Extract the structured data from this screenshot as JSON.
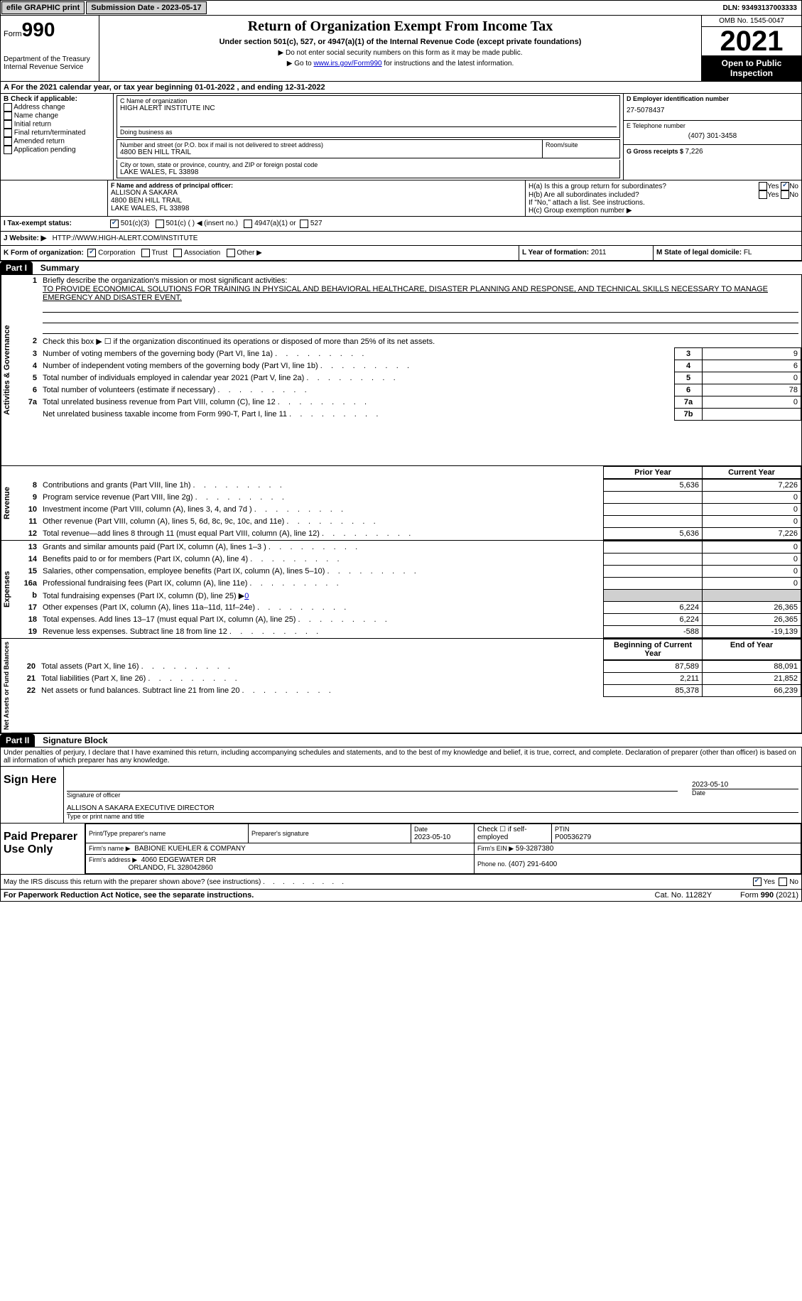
{
  "topbar": {
    "efile_label": "efile GRAPHIC print",
    "submission_label": "Submission Date - 2023-05-17",
    "dln_label": "DLN: 93493137003333"
  },
  "header": {
    "form_label": "Form",
    "form_number": "990",
    "dept": "Department of the Treasury Internal Revenue Service",
    "title": "Return of Organization Exempt From Income Tax",
    "subtitle": "Under section 501(c), 527, or 4947(a)(1) of the Internal Revenue Code (except private foundations)",
    "instr1": "▶ Do not enter social security numbers on this form as it may be made public.",
    "instr2_pre": "▶ Go to ",
    "instr2_link": "www.irs.gov/Form990",
    "instr2_post": " for instructions and the latest information.",
    "omb": "OMB No. 1545-0047",
    "year": "2021",
    "open": "Open to Public Inspection"
  },
  "lineA": {
    "text_pre": "A For the 2021 calendar year, or tax year beginning ",
    "begin": "01-01-2022",
    "mid": "  , and ending ",
    "end": "12-31-2022"
  },
  "secB": {
    "label": "B Check if applicable:",
    "items": [
      "Address change",
      "Name change",
      "Initial return",
      "Final return/terminated",
      "Amended return",
      "Application pending"
    ]
  },
  "secC": {
    "name_label": "C Name of organization",
    "name": "HIGH ALERT INSTITUTE INC",
    "dba_label": "Doing business as",
    "addr_label": "Number and street (or P.O. box if mail is not delivered to street address)",
    "room_label": "Room/suite",
    "addr": "4800 BEN HILL TRAIL",
    "city_label": "City or town, state or province, country, and ZIP or foreign postal code",
    "city": "LAKE WALES, FL  33898"
  },
  "secD": {
    "label": "D Employer identification number",
    "val": "27-5078437"
  },
  "secE": {
    "label": "E Telephone number",
    "val": "(407) 301-3458"
  },
  "secG": {
    "label": "G Gross receipts $ ",
    "val": "7,226"
  },
  "secF": {
    "label": "F  Name and address of principal officer:",
    "name": "ALLISON A SAKARA",
    "addr": "4800 BEN HILL TRAIL",
    "city": "LAKE WALES, FL  33898"
  },
  "secH": {
    "a": "H(a)  Is this a group return for subordinates?",
    "b": "H(b)  Are all subordinates included?",
    "note": "If \"No,\" attach a list. See instructions.",
    "c": "H(c)  Group exemption number ▶",
    "yes": "Yes",
    "no": "No"
  },
  "secI": {
    "label": "I    Tax-exempt status:",
    "opt1": "501(c)(3)",
    "opt2": "501(c) (   ) ◀ (insert no.)",
    "opt3": "4947(a)(1) or",
    "opt4": "527"
  },
  "secJ": {
    "label": "J   Website: ▶",
    "val": "HTTP://WWW.HIGH-ALERT.COM/INSTITUTE"
  },
  "secK": {
    "label": "K Form of organization:",
    "opts": [
      "Corporation",
      "Trust",
      "Association",
      "Other ▶"
    ]
  },
  "secL": {
    "label": "L Year of formation: ",
    "val": "2011"
  },
  "secM": {
    "label": "M State of legal domicile: ",
    "val": "FL"
  },
  "part1": {
    "hdr": "Part I",
    "title": "Summary"
  },
  "summary": {
    "q1_label": "Briefly describe the organization's mission or most significant activities:",
    "q1_text": "TO PROVIDE ECONOMICAL SOLUTIONS FOR TRAINING IN PHYSICAL AND BEHAVIORAL HEALTHCARE, DISASTER PLANNING AND RESPONSE, AND TECHNICAL SKILLS NECESSARY TO MANAGE EMERGENCY AND DISASTER EVENT.",
    "q2": "Check this box ▶ ☐  if the organization discontinued its operations or disposed of more than 25% of its net assets.",
    "lines": [
      {
        "n": "3",
        "t": "Number of voting members of the governing body (Part VI, line 1a)",
        "box": "3",
        "v": "9"
      },
      {
        "n": "4",
        "t": "Number of independent voting members of the governing body (Part VI, line 1b)",
        "box": "4",
        "v": "6"
      },
      {
        "n": "5",
        "t": "Total number of individuals employed in calendar year 2021 (Part V, line 2a)",
        "box": "5",
        "v": "0"
      },
      {
        "n": "6",
        "t": "Total number of volunteers (estimate if necessary)",
        "box": "6",
        "v": "78"
      },
      {
        "n": "7a",
        "t": "Total unrelated business revenue from Part VIII, column (C), line 12",
        "box": "7a",
        "v": "0"
      },
      {
        "n": "",
        "t": "Net unrelated business taxable income from Form 990-T, Part I, line 11",
        "box": "7b",
        "v": ""
      }
    ],
    "prior_label": "Prior Year",
    "curr_label": "Current Year",
    "revenue": [
      {
        "n": "8",
        "t": "Contributions and grants (Part VIII, line 1h)",
        "p": "5,636",
        "c": "7,226"
      },
      {
        "n": "9",
        "t": "Program service revenue (Part VIII, line 2g)",
        "p": "",
        "c": "0"
      },
      {
        "n": "10",
        "t": "Investment income (Part VIII, column (A), lines 3, 4, and 7d )",
        "p": "",
        "c": "0"
      },
      {
        "n": "11",
        "t": "Other revenue (Part VIII, column (A), lines 5, 6d, 8c, 9c, 10c, and 11e)",
        "p": "",
        "c": "0"
      },
      {
        "n": "12",
        "t": "Total revenue—add lines 8 through 11 (must equal Part VIII, column (A), line 12)",
        "p": "5,636",
        "c": "7,226"
      }
    ],
    "expenses": [
      {
        "n": "13",
        "t": "Grants and similar amounts paid (Part IX, column (A), lines 1–3 )",
        "p": "",
        "c": "0"
      },
      {
        "n": "14",
        "t": "Benefits paid to or for members (Part IX, column (A), line 4)",
        "p": "",
        "c": "0"
      },
      {
        "n": "15",
        "t": "Salaries, other compensation, employee benefits (Part IX, column (A), lines 5–10)",
        "p": "",
        "c": "0"
      },
      {
        "n": "16a",
        "t": "Professional fundraising fees (Part IX, column (A), line 11e)",
        "p": "",
        "c": "0"
      },
      {
        "n": "b",
        "t": "Total fundraising expenses (Part IX, column (D), line 25) ▶",
        "fund": "0"
      },
      {
        "n": "17",
        "t": "Other expenses (Part IX, column (A), lines 11a–11d, 11f–24e)",
        "p": "6,224",
        "c": "26,365"
      },
      {
        "n": "18",
        "t": "Total expenses. Add lines 13–17 (must equal Part IX, column (A), line 25)",
        "p": "6,224",
        "c": "26,365"
      },
      {
        "n": "19",
        "t": "Revenue less expenses. Subtract line 18 from line 12",
        "p": "-588",
        "c": "-19,139"
      }
    ],
    "beg_label": "Beginning of Current Year",
    "end_label": "End of Year",
    "netassets": [
      {
        "n": "20",
        "t": "Total assets (Part X, line 16)",
        "p": "87,589",
        "c": "88,091"
      },
      {
        "n": "21",
        "t": "Total liabilities (Part X, line 26)",
        "p": "2,211",
        "c": "21,852"
      },
      {
        "n": "22",
        "t": "Net assets or fund balances. Subtract line 21 from line 20",
        "p": "85,378",
        "c": "66,239"
      }
    ],
    "side_ag": "Activities & Governance",
    "side_rev": "Revenue",
    "side_exp": "Expenses",
    "side_na": "Net Assets or Fund Balances"
  },
  "part2": {
    "hdr": "Part II",
    "title": "Signature Block"
  },
  "sig": {
    "perjury": "Under penalties of perjury, I declare that I have examined this return, including accompanying schedules and statements, and to the best of my knowledge and belief, it is true, correct, and complete. Declaration of preparer (other than officer) is based on all information of which preparer has any knowledge.",
    "sign_here": "Sign Here",
    "sig_officer": "Signature of officer",
    "date_label": "Date",
    "date": "2023-05-10",
    "officer_name": "ALLISON A SAKARA  EXECUTIVE DIRECTOR",
    "type_name": "Type or print name and title",
    "paid": "Paid Preparer Use Only",
    "print_label": "Print/Type preparer's name",
    "prep_sig": "Preparer's signature",
    "prep_date": "2023-05-10",
    "check_self": "Check ☐ if self-employed",
    "ptin_label": "PTIN",
    "ptin": "P00536279",
    "firm_name_label": "Firm's name    ▶",
    "firm_name": "BABIONE KUEHLER & COMPANY",
    "firm_ein_label": "Firm's EIN ▶",
    "firm_ein": "59-3287380",
    "firm_addr_label": "Firm's address ▶",
    "firm_addr": "4060 EDGEWATER DR",
    "firm_city": "ORLANDO, FL  328042860",
    "phone_label": "Phone no.",
    "phone": "(407) 291-6400",
    "may_irs": "May the IRS discuss this return with the preparer shown above? (see instructions)",
    "yes": "Yes",
    "no": "No"
  },
  "footer": {
    "pra": "For Paperwork Reduction Act Notice, see the separate instructions.",
    "cat": "Cat. No. 11282Y",
    "form": "Form 990 (2021)"
  }
}
